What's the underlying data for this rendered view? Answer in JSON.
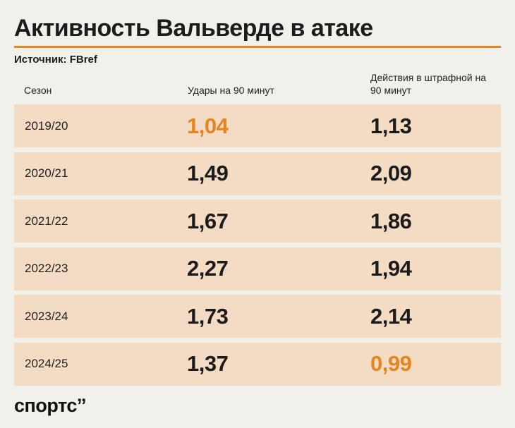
{
  "header": {
    "title": "Активность Вальверде в атаке",
    "source": "Источник: FBref"
  },
  "table": {
    "columns": [
      "Сезон",
      "Удары на 90 минут",
      "Действия в штрафной на 90 минут"
    ],
    "rows": [
      {
        "season": "2019/20",
        "shots": "1,04",
        "box": "1,13",
        "shots_hl": true,
        "box_hl": false
      },
      {
        "season": "2020/21",
        "shots": "1,49",
        "box": "2,09",
        "shots_hl": false,
        "box_hl": false
      },
      {
        "season": "2021/22",
        "shots": "1,67",
        "box": "1,86",
        "shots_hl": false,
        "box_hl": false
      },
      {
        "season": "2022/23",
        "shots": "2,27",
        "box": "1,94",
        "shots_hl": false,
        "box_hl": false
      },
      {
        "season": "2023/24",
        "shots": "1,73",
        "box": "2,14",
        "shots_hl": false,
        "box_hl": false
      },
      {
        "season": "2024/25",
        "shots": "1,37",
        "box": "0,99",
        "shots_hl": false,
        "box_hl": true
      }
    ]
  },
  "chart_data": {
    "type": "table",
    "title": "Активность Вальверде в атаке",
    "subtitle": "Источник: FBref",
    "columns": [
      "Сезон",
      "Удары на 90 минут",
      "Действия в штрафной на 90 минут"
    ],
    "categories": [
      "2019/20",
      "2020/21",
      "2021/22",
      "2022/23",
      "2023/24",
      "2024/25"
    ],
    "series": [
      {
        "name": "Удары на 90 минут",
        "values": [
          1.04,
          1.49,
          1.67,
          2.27,
          1.73,
          1.37
        ]
      },
      {
        "name": "Действия в штрафной на 90 минут",
        "values": [
          1.13,
          2.09,
          1.86,
          1.94,
          2.14,
          0.99
        ]
      }
    ]
  },
  "colors": {
    "background": "#f2f0eb",
    "accent": "#e8841e",
    "row_fill": "#f3dcc3",
    "text": "#1c1c1c"
  },
  "footer": {
    "logo": "спортс’’"
  }
}
